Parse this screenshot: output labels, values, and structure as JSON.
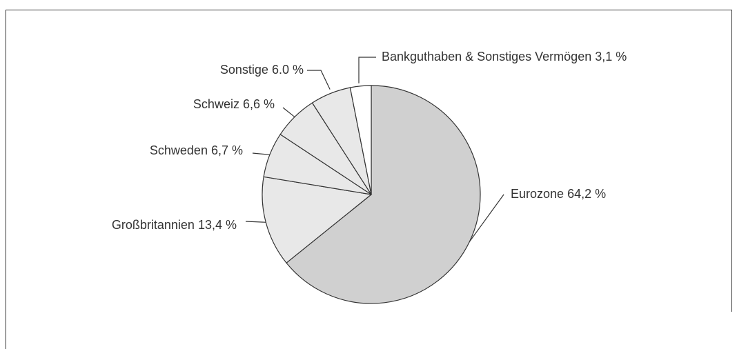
{
  "chart_data": {
    "type": "pie",
    "categories": [
      "Eurozone",
      "Großbritannien",
      "Schweden",
      "Schweiz",
      "Sonstige",
      "Bankguthaben & Sonstiges Vermögen"
    ],
    "values": [
      64.2,
      13.4,
      6.7,
      6.6,
      6.0,
      3.1
    ],
    "value_labels": [
      "64,2 %",
      "13,4 %",
      "6,7 %",
      "6,6 %",
      "6.0 %",
      "3,1 %"
    ],
    "colors": [
      "#d0d0d0",
      "#e8e8e8",
      "#e8e8e8",
      "#e8e8e8",
      "#e8e8e8",
      "#ffffff"
    ]
  }
}
